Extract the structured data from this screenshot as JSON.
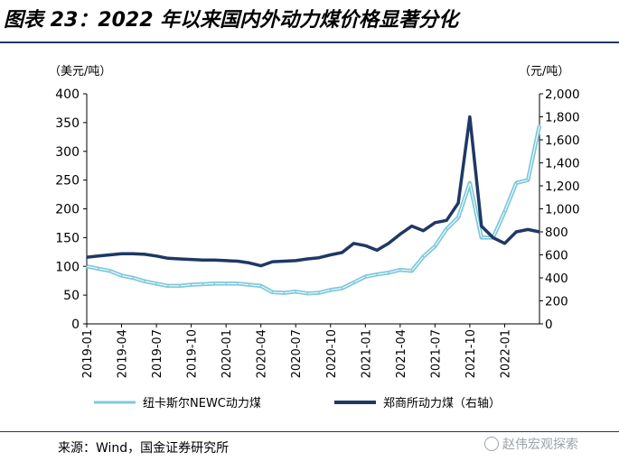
{
  "title": "图表 23：2022 年以来国内外动力煤价格显著分化",
  "source": "来源：Wind，国金证券研究所",
  "watermark": "赵伟宏观探索",
  "colors": {
    "newc": "#7fc9dc",
    "zce": "#1f3864",
    "axis": "#000000",
    "rule": "#1f3864"
  },
  "chart_data": {
    "type": "line",
    "left_axis_unit": "（美元/吨）",
    "right_axis_unit": "（元/吨）",
    "left_ylim": [
      0,
      400
    ],
    "right_ylim": [
      0,
      2000
    ],
    "left_ticks": [
      "0",
      "50",
      "100",
      "150",
      "200",
      "250",
      "300",
      "350",
      "400"
    ],
    "right_ticks": [
      "0",
      "200",
      "400",
      "600",
      "800",
      "1,000",
      "1,200",
      "1,400",
      "1,600",
      "1,800",
      "2,000"
    ],
    "x_ticks": [
      "2019-01",
      "2019-04",
      "2019-07",
      "2019-10",
      "2020-01",
      "2020-04",
      "2020-07",
      "2020-10",
      "2021-01",
      "2021-04",
      "2021-07",
      "2021-10",
      "2022-01"
    ],
    "x_range": [
      "2019-01",
      "2022-04"
    ],
    "grid": false,
    "legend_placement": "bottom",
    "series": [
      {
        "name": "纽卡斯尔NEWC动力煤",
        "axis": "left",
        "x": [
          "2019-01",
          "2019-02",
          "2019-03",
          "2019-04",
          "2019-05",
          "2019-06",
          "2019-07",
          "2019-08",
          "2019-09",
          "2019-10",
          "2019-11",
          "2019-12",
          "2020-01",
          "2020-02",
          "2020-03",
          "2020-04",
          "2020-05",
          "2020-06",
          "2020-07",
          "2020-08",
          "2020-09",
          "2020-10",
          "2020-11",
          "2020-12",
          "2021-01",
          "2021-02",
          "2021-03",
          "2021-04",
          "2021-05",
          "2021-06",
          "2021-07",
          "2021-08",
          "2021-09",
          "2021-10",
          "2021-11",
          "2021-12",
          "2022-01",
          "2022-02",
          "2022-03",
          "2022-04"
        ],
        "values": [
          100,
          96,
          92,
          84,
          80,
          74,
          70,
          66,
          66,
          68,
          69,
          70,
          70,
          70,
          68,
          66,
          55,
          54,
          56,
          53,
          54,
          59,
          62,
          72,
          82,
          86,
          89,
          94,
          92,
          117,
          135,
          165,
          185,
          245,
          150,
          150,
          195,
          245,
          250,
          345
        ]
      },
      {
        "name": "郑商所动力煤（右轴）",
        "axis": "right",
        "x": [
          "2019-01",
          "2019-02",
          "2019-03",
          "2019-04",
          "2019-05",
          "2019-06",
          "2019-07",
          "2019-08",
          "2019-09",
          "2019-10",
          "2019-11",
          "2019-12",
          "2020-01",
          "2020-02",
          "2020-03",
          "2020-04",
          "2020-05",
          "2020-06",
          "2020-07",
          "2020-08",
          "2020-09",
          "2020-10",
          "2020-11",
          "2020-12",
          "2021-01",
          "2021-02",
          "2021-03",
          "2021-04",
          "2021-05",
          "2021-06",
          "2021-07",
          "2021-08",
          "2021-09",
          "2021-10",
          "2021-11",
          "2021-12",
          "2022-01",
          "2022-02",
          "2022-03",
          "2022-04"
        ],
        "values": [
          580,
          590,
          600,
          610,
          610,
          605,
          590,
          570,
          565,
          560,
          555,
          555,
          550,
          545,
          530,
          505,
          540,
          545,
          550,
          565,
          575,
          600,
          620,
          700,
          680,
          640,
          700,
          780,
          850,
          810,
          880,
          900,
          1050,
          1800,
          850,
          750,
          700,
          800,
          820,
          800
        ]
      }
    ]
  }
}
